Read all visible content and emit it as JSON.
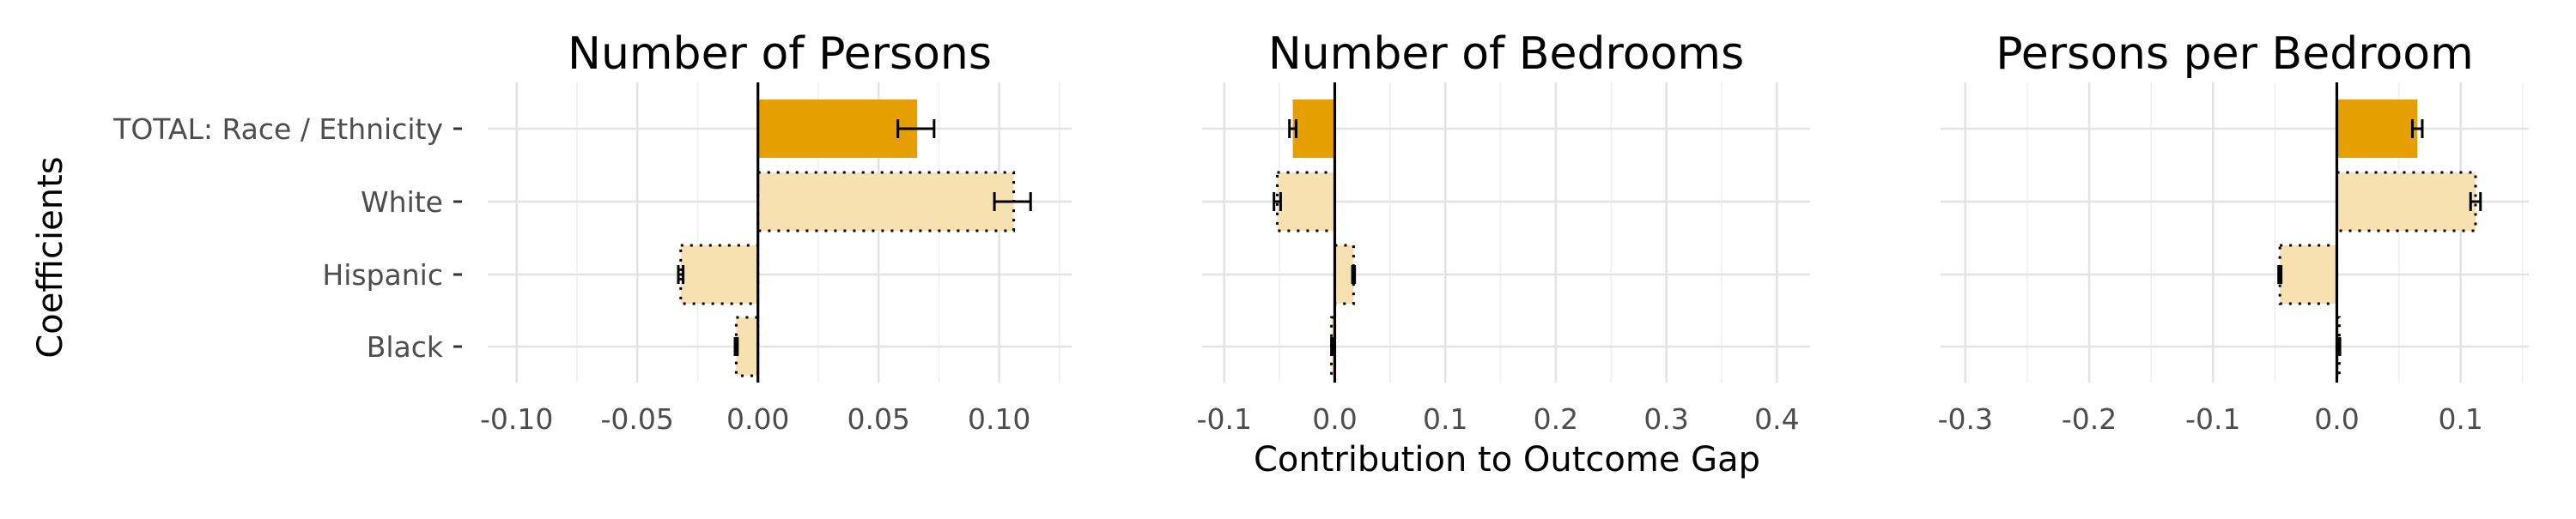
{
  "chart_data": {
    "type": "bar",
    "orientation": "horizontal",
    "ylabel": "Coefficients",
    "xlabel": "Contribution to Outcome Gap",
    "categories": [
      "TOTAL: Race / Ethnicity",
      "White",
      "Hispanic",
      "Black"
    ],
    "total_category": "TOTAL: Race / Ethnicity",
    "colors": {
      "total": "#E69F00",
      "component": "#F7E1B0",
      "zero_line": "#000000",
      "error_bar": "#000000"
    },
    "grid": true,
    "legend": "none",
    "panels": [
      {
        "title": "Number of Persons",
        "xlim": [
          -0.112,
          0.13
        ],
        "xticks": [
          -0.1,
          -0.05,
          0.0,
          0.05,
          0.1
        ],
        "xtick_labels": [
          "-0.10",
          "-0.05",
          "0.00",
          "0.05",
          "0.10"
        ],
        "values": [
          0.066,
          0.106,
          -0.032,
          -0.009
        ],
        "errors": [
          [
            0.058,
            0.073
          ],
          [
            0.098,
            0.113
          ],
          [
            -0.033,
            -0.031
          ],
          [
            -0.0095,
            -0.0085
          ]
        ]
      },
      {
        "title": "Number of Bedrooms",
        "xlim": [
          -0.12,
          0.43
        ],
        "xticks": [
          -0.1,
          0.0,
          0.1,
          0.2,
          0.3,
          0.4
        ],
        "xtick_labels": [
          "-0.1",
          "0.0",
          "0.1",
          "0.2",
          "0.3",
          "0.4"
        ],
        "values": [
          -0.038,
          -0.052,
          0.017,
          -0.003
        ],
        "errors": [
          [
            -0.041,
            -0.035
          ],
          [
            -0.055,
            -0.049
          ],
          [
            0.016,
            0.018
          ],
          [
            -0.003,
            -0.002
          ]
        ]
      },
      {
        "title": "Persons per Bedroom",
        "xlim": [
          -0.32,
          0.155
        ],
        "xticks": [
          -0.3,
          -0.2,
          -0.1,
          0.0,
          0.1
        ],
        "xtick_labels": [
          "-0.3",
          "-0.2",
          "-0.1",
          "0.0",
          "0.1"
        ],
        "values": [
          0.065,
          0.112,
          -0.046,
          0.002
        ],
        "errors": [
          [
            0.061,
            0.069
          ],
          [
            0.108,
            0.116
          ],
          [
            -0.047,
            -0.045
          ],
          [
            0.0015,
            0.0025
          ]
        ]
      }
    ]
  }
}
